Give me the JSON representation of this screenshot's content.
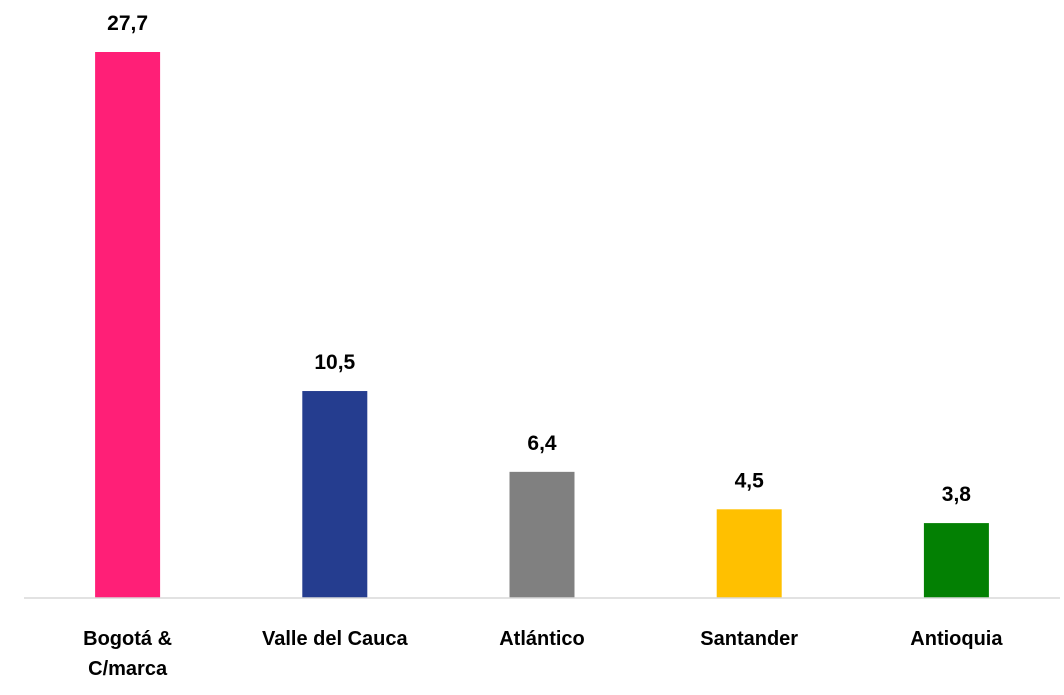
{
  "chart_data": {
    "type": "bar",
    "categories": [
      "Bogotá & C/marca",
      "Valle del Cauca",
      "Atlántico",
      "Santander",
      "Antioquia"
    ],
    "values": [
      27.7,
      10.5,
      6.4,
      4.5,
      3.8
    ],
    "value_labels": [
      "27,7",
      "10,5",
      "6,4",
      "4,5",
      "3,8"
    ],
    "colors": [
      "#ff1f77",
      "#253d8f",
      "#808080",
      "#ffc000",
      "#038003"
    ]
  }
}
